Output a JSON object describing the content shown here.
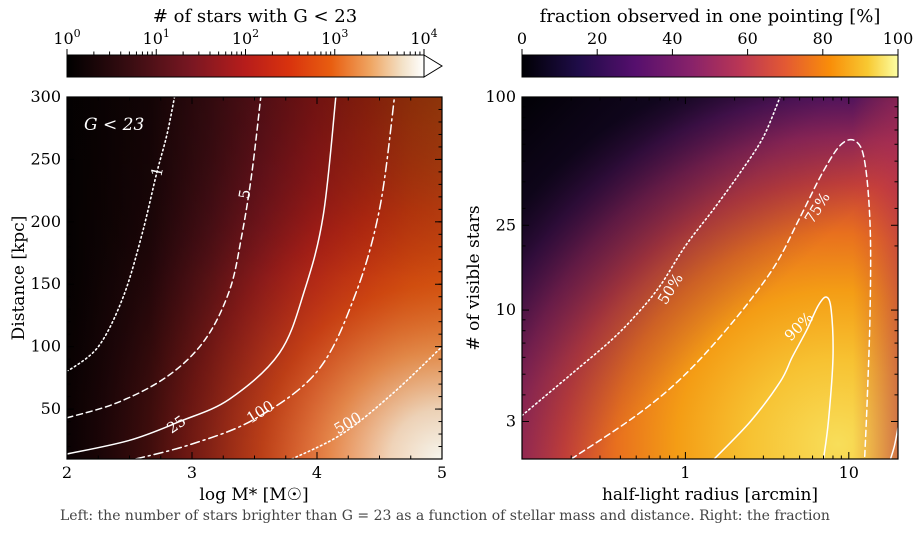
{
  "chart_data": [
    {
      "type": "heatmap",
      "colorbar": {
        "label": "# of stars with G < 23",
        "scale": "log",
        "ticks": [
          "10^0",
          "10^1",
          "10^2",
          "10^3",
          "10^4"
        ],
        "range": [
          1,
          10000
        ],
        "extend": "max",
        "colormap": "black-red-orange-white"
      },
      "annotation": "G < 23",
      "xlabel": "log M* [M☉]",
      "ylabel": "Distance [kpc]",
      "xlim": [
        2,
        5
      ],
      "ylim": [
        10,
        300
      ],
      "xticks": [
        2,
        3,
        4,
        5
      ],
      "yticks": [
        50,
        100,
        150,
        200,
        250,
        300
      ],
      "contours": [
        {
          "label": "1",
          "style": "dotted",
          "points": [
            [
              2.0,
              80
            ],
            [
              2.25,
              100
            ],
            [
              2.45,
              140
            ],
            [
              2.6,
              190
            ],
            [
              2.72,
              240
            ],
            [
              2.8,
              270
            ],
            [
              2.86,
              300
            ]
          ]
        },
        {
          "label": "5",
          "style": "dashed",
          "points": [
            [
              2.0,
              43
            ],
            [
              2.4,
              55
            ],
            [
              2.8,
              76
            ],
            [
              3.1,
              105
            ],
            [
              3.3,
              145
            ],
            [
              3.4,
              190
            ],
            [
              3.48,
              240
            ],
            [
              3.55,
              300
            ]
          ]
        },
        {
          "label": "25",
          "style": "solid",
          "points": [
            [
              2.0,
              14
            ],
            [
              2.5,
              25
            ],
            [
              2.9,
              40
            ],
            [
              3.3,
              58
            ],
            [
              3.7,
              95
            ],
            [
              3.9,
              145
            ],
            [
              4.05,
              205
            ],
            [
              4.15,
              300
            ]
          ]
        },
        {
          "label": "100",
          "style": "dashdot",
          "points": [
            [
              2.55,
              10
            ],
            [
              3.0,
              22
            ],
            [
              3.5,
              42
            ],
            [
              4.0,
              80
            ],
            [
              4.3,
              140
            ],
            [
              4.5,
              210
            ],
            [
              4.62,
              300
            ]
          ]
        },
        {
          "label": "500",
          "style": "dotted",
          "points": [
            [
              3.8,
              10
            ],
            [
              4.2,
              30
            ],
            [
              4.6,
              62
            ],
            [
              5.0,
              100
            ]
          ]
        }
      ]
    },
    {
      "type": "heatmap",
      "colorbar": {
        "label": "fraction observed in one pointing [%]",
        "scale": "linear",
        "ticks": [
          "0",
          "20",
          "40",
          "60",
          "80",
          "100"
        ],
        "range": [
          0,
          100
        ],
        "colormap": "inferno"
      },
      "xlabel": "half-light radius [arcmin]",
      "ylabel": "# of visible stars",
      "xscale": "log",
      "yscale": "log",
      "xlim": [
        0.1,
        20
      ],
      "ylim": [
        2,
        100
      ],
      "xticks": [
        "1",
        "10"
      ],
      "yticks": [
        "3",
        "10",
        "25",
        "100"
      ],
      "contours": [
        {
          "label": "50%",
          "style": "dotted",
          "points": [
            [
              0.1,
              3.2
            ],
            [
              0.2,
              5.0
            ],
            [
              0.35,
              7.2
            ],
            [
              0.5,
              9.5
            ],
            [
              0.7,
              13
            ],
            [
              1.0,
              20
            ],
            [
              1.5,
              30
            ],
            [
              2.2,
              45
            ],
            [
              3.0,
              65
            ],
            [
              3.8,
              100
            ]
          ]
        },
        {
          "label": "75%",
          "style": "dashed",
          "points": [
            [
              0.2,
              2.0
            ],
            [
              0.5,
              3.2
            ],
            [
              1.0,
              5.0
            ],
            [
              2.0,
              9.0
            ],
            [
              3.5,
              16
            ],
            [
              5.0,
              27
            ],
            [
              7.0,
              45
            ],
            [
              9.0,
              60
            ],
            [
              11.0,
              62
            ],
            [
              12.5,
              50
            ],
            [
              13.5,
              25
            ],
            [
              13.5,
              10
            ],
            [
              13.0,
              4.0
            ],
            [
              12.5,
              2.0
            ]
          ]
        },
        {
          "label": "90%",
          "style": "solid",
          "points": [
            [
              1.5,
              2.0
            ],
            [
              2.5,
              3.0
            ],
            [
              3.8,
              4.6
            ],
            [
              4.5,
              6.0
            ],
            [
              5.5,
              8.0
            ],
            [
              6.5,
              10.5
            ],
            [
              7.3,
              11.5
            ],
            [
              7.8,
              10
            ],
            [
              8.0,
              6.0
            ],
            [
              7.5,
              3.0
            ],
            [
              7.0,
              2.0
            ]
          ]
        },
        {
          "label": "",
          "style": "solid",
          "points": [
            [
              18.0,
              2.0
            ],
            [
              19.0,
              2.3
            ],
            [
              20.0,
              2.8
            ]
          ]
        }
      ]
    }
  ],
  "caption_fragment": "Left: the number of stars brighter than G = 23 as a function of stellar mass and distance. Right: the fraction"
}
